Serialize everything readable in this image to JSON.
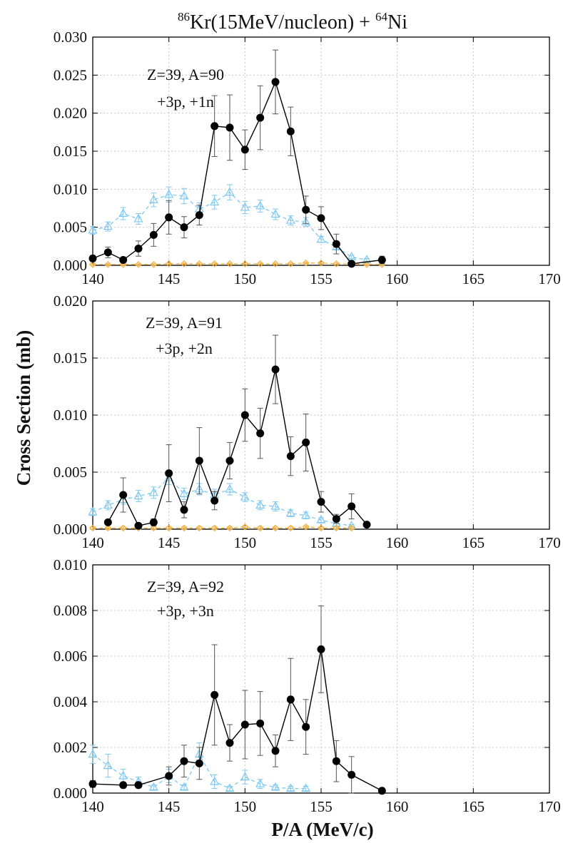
{
  "figure": {
    "title_prefix_sup": "86",
    "title_middle": "Kr(15MeV/nucleon) + ",
    "title_suffix_sup": "64",
    "title_suffix": "Ni",
    "xlabel": "P/A (MeV/c)",
    "ylabel": "Cross Section (mb)"
  },
  "colors": {
    "data": "#000000",
    "model_a": "#7ec8f0",
    "model_b": "#f0b040"
  },
  "chart_data": [
    {
      "type": "line",
      "annotation_line1": "Z=39, A=90",
      "annotation_line2": "+3p, +1n",
      "xlim": [
        140,
        170
      ],
      "ylim": [
        0,
        0.03
      ],
      "xticks": [
        "140",
        "145",
        "150",
        "155",
        "160",
        "165",
        "170"
      ],
      "yticks": [
        "0.000",
        "0.005",
        "0.010",
        "0.015",
        "0.020",
        "0.025",
        "0.030"
      ],
      "grid": true,
      "series": [
        {
          "style": "data",
          "x": [
            140,
            141,
            142,
            143,
            144,
            145,
            146,
            147,
            148,
            149,
            150,
            151,
            152,
            153,
            154,
            155,
            156,
            157,
            159
          ],
          "y": [
            0.0009,
            0.0017,
            0.0007,
            0.0022,
            0.004,
            0.0063,
            0.005,
            0.0066,
            0.0183,
            0.0181,
            0.0152,
            0.0194,
            0.0241,
            0.0176,
            0.0073,
            0.0062,
            0.0028,
            0.0002,
            0.0007
          ],
          "err": [
            0.0004,
            0.0007,
            0.0003,
            0.001,
            0.0015,
            0.0022,
            0.0014,
            0.0013,
            0.004,
            0.0043,
            0.0026,
            0.0042,
            0.0042,
            0.0032,
            0.0018,
            0.0015,
            0.0013,
            0.0002,
            0.0005
          ]
        },
        {
          "style": "model_a",
          "x": [
            140,
            141,
            142,
            143,
            144,
            145,
            146,
            147,
            148,
            149,
            150,
            151,
            152,
            153,
            154,
            155,
            156,
            157,
            158
          ],
          "y": [
            0.0046,
            0.0051,
            0.0068,
            0.0061,
            0.0086,
            0.0093,
            0.0091,
            0.0074,
            0.0083,
            0.0096,
            0.0076,
            0.0078,
            0.0067,
            0.0059,
            0.0057,
            0.0034,
            0.0024,
            0.0011,
            0.0007
          ],
          "err": [
            0.0005,
            0.0006,
            0.0008,
            0.0007,
            0.0009,
            0.001,
            0.001,
            0.0008,
            0.0009,
            0.001,
            0.0008,
            0.0008,
            0.0007,
            0.0006,
            0.0006,
            0.0004,
            0.0003,
            0.0002,
            0.0002
          ]
        },
        {
          "style": "model_b",
          "x": [
            140,
            141,
            142,
            143,
            144,
            145,
            146,
            147,
            148,
            149,
            150,
            151,
            152,
            153,
            154,
            155,
            156,
            157,
            158,
            159
          ],
          "y": [
            0.0001,
            0.0001,
            0.0001,
            0.0001,
            0.0001,
            0.0002,
            0.0002,
            0.0002,
            0.0002,
            0.0002,
            0.0002,
            0.0002,
            0.0002,
            0.0002,
            0.0003,
            0.0003,
            0.0002,
            0.0002,
            0.0001,
            0.0001
          ],
          "err": [
            0.0001,
            0.0001,
            0.0001,
            0.0001,
            0.0001,
            0.0001,
            0.0001,
            0.0001,
            0.0001,
            0.0001,
            0.0001,
            0.0001,
            0.0001,
            0.0001,
            0.0001,
            0.0001,
            0.0001,
            0.0001,
            0.0001,
            0.0001
          ]
        }
      ]
    },
    {
      "type": "line",
      "annotation_line1": "Z=39, A=91",
      "annotation_line2": "+3p, +2n",
      "xlim": [
        140,
        170
      ],
      "ylim": [
        0,
        0.02
      ],
      "xticks": [
        "140",
        "145",
        "150",
        "155",
        "160",
        "165",
        "170"
      ],
      "yticks": [
        "0.000",
        "0.005",
        "0.010",
        "0.015",
        "0.020"
      ],
      "grid": true,
      "series": [
        {
          "style": "data",
          "x": [
            141,
            142,
            143,
            144,
            145,
            146,
            147,
            148,
            149,
            150,
            151,
            152,
            153,
            154,
            155,
            156,
            157,
            158
          ],
          "y": [
            0.0006,
            0.003,
            0.0003,
            0.0006,
            0.0049,
            0.0017,
            0.006,
            0.0025,
            0.006,
            0.01,
            0.0084,
            0.014,
            0.0064,
            0.0076,
            0.0024,
            0.0009,
            0.002,
            0.0004
          ],
          "err": [
            0.0002,
            0.0015,
            0.0002,
            0.0003,
            0.0025,
            0.0007,
            0.0029,
            0.0008,
            0.0016,
            0.0023,
            0.0022,
            0.003,
            0.0017,
            0.0025,
            0.0009,
            0.0004,
            0.0011,
            0.0002
          ]
        },
        {
          "style": "model_a",
          "x": [
            140,
            141,
            142,
            143,
            144,
            145,
            146,
            147,
            148,
            149,
            150,
            151,
            152,
            153,
            154,
            155,
            156,
            157
          ],
          "y": [
            0.0015,
            0.0021,
            0.0026,
            0.0029,
            0.0032,
            0.0045,
            0.0031,
            0.0035,
            0.003,
            0.0035,
            0.0028,
            0.0021,
            0.002,
            0.0014,
            0.0012,
            0.0008,
            0.0005,
            0.0003
          ],
          "err": [
            0.0003,
            0.0004,
            0.0004,
            0.0005,
            0.0005,
            0.0006,
            0.0005,
            0.0005,
            0.0005,
            0.0005,
            0.0004,
            0.0004,
            0.0004,
            0.0003,
            0.0003,
            0.0002,
            0.0002,
            0.0001
          ]
        },
        {
          "style": "model_b",
          "x": [
            140,
            141,
            142,
            143,
            144,
            145,
            146,
            147,
            148,
            149,
            150,
            151,
            152,
            153,
            154,
            155,
            156,
            157
          ],
          "y": [
            0.0001,
            0.0001,
            0.0001,
            0.0001,
            0.0001,
            0.0001,
            0.0001,
            0.0001,
            0.0001,
            0.0001,
            0.0002,
            0.0001,
            0.0001,
            0.0001,
            0.0002,
            0.0001,
            0.0001,
            0.0001
          ],
          "err": [
            0.0001,
            0.0001,
            0.0001,
            0.0001,
            0.0001,
            0.0001,
            0.0001,
            0.0001,
            0.0001,
            0.0001,
            0.0001,
            0.0001,
            0.0001,
            0.0001,
            0.0001,
            0.0001,
            0.0001,
            0.0001
          ]
        }
      ]
    },
    {
      "type": "line",
      "annotation_line1": "Z=39, A=92",
      "annotation_line2": "+3p, +3n",
      "xlim": [
        140,
        170
      ],
      "ylim": [
        0,
        0.01
      ],
      "xticks": [
        "140",
        "145",
        "150",
        "155",
        "160",
        "165",
        "170"
      ],
      "yticks": [
        "0.000",
        "0.002",
        "0.004",
        "0.006",
        "0.008",
        "0.010"
      ],
      "grid": true,
      "series": [
        {
          "style": "data",
          "x": [
            140,
            142,
            143,
            145,
            146,
            147,
            148,
            149,
            150,
            151,
            152,
            153,
            154,
            155,
            156,
            157,
            159
          ],
          "y": [
            0.0004,
            0.00035,
            0.00035,
            0.00075,
            0.0014,
            0.0013,
            0.0043,
            0.0022,
            0.003,
            0.00305,
            0.00185,
            0.0041,
            0.0029,
            0.0063,
            0.0014,
            0.0008,
            0.0001
          ],
          "err": [
            0.00015,
            0.00012,
            0.00012,
            0.0004,
            0.0007,
            0.0007,
            0.0022,
            0.0008,
            0.0015,
            0.0014,
            0.0007,
            0.0018,
            0.0012,
            0.0019,
            0.0009,
            0.0008,
            5e-05
          ]
        },
        {
          "style": "model_a",
          "x": [
            140,
            141,
            142,
            143,
            144,
            145,
            146,
            147,
            148,
            149,
            150,
            151,
            152,
            153,
            154
          ],
          "y": [
            0.0017,
            0.0012,
            0.00075,
            0.0005,
            0.00025,
            0.00075,
            0.00025,
            0.0017,
            0.0005,
            0.0002,
            0.0007,
            0.0004,
            0.00025,
            0.0002,
            0.0002
          ],
          "err": [
            0.0004,
            0.0005,
            0.0003,
            0.0002,
            0.0001,
            0.0003,
            0.0001,
            0.0005,
            0.0003,
            0.0001,
            0.0003,
            0.0002,
            0.0001,
            0.0001,
            0.0001
          ]
        }
      ]
    }
  ]
}
